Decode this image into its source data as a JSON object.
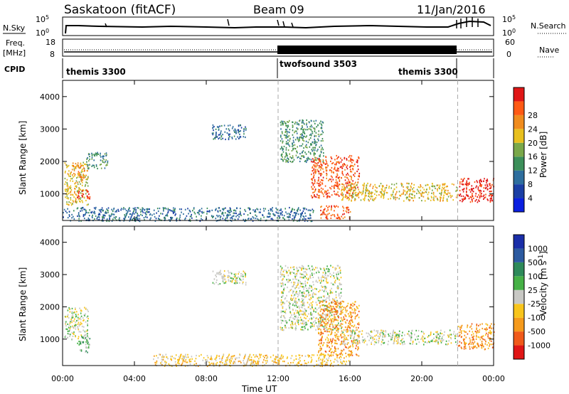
{
  "header": {
    "station": "Saskatoon (fitACF)",
    "beam": "Beam 09",
    "date": "11/Jan/2016"
  },
  "nsky_panel": {
    "label": "N.Sky",
    "right_label": "N.Search",
    "left_ticks": [
      "10^5",
      "10^0"
    ],
    "right_ticks": [
      "10^5",
      "10^0"
    ]
  },
  "freq_panel": {
    "label_line1": "Freq.",
    "label_line2": "[MHz]",
    "right_label": "Nave",
    "left_ticks": [
      "18",
      "8"
    ],
    "right_ticks": [
      "60",
      "0"
    ]
  },
  "cpid_panel": {
    "label": "CPID",
    "segments": [
      {
        "name": "themis 3300",
        "start_hour": 0,
        "end_hour": 12
      },
      {
        "name": "twofsound 3503",
        "start_hour": 12,
        "end_hour": 22
      },
      {
        "name": "themis 3300",
        "start_hour": 22,
        "end_hour": 24
      }
    ]
  },
  "colors": {
    "power": [
      "#0a1fe0",
      "#1b3fa5",
      "#2e6e9e",
      "#3c8f5a",
      "#7aa84a",
      "#e8c01e",
      "#f08c1e",
      "#ff5a14",
      "#e01616"
    ],
    "velocity": [
      "#e01616",
      "#f05a1a",
      "#f59a1c",
      "#f8c51c",
      "#c8c8c4",
      "#46b146",
      "#2e8a5a",
      "#2c5aa0",
      "#1a2ea8"
    ],
    "ground_scatter": "#c8c8c4"
  },
  "chart_data": [
    {
      "type": "heatmap",
      "name": "power",
      "ylabel": "Slant Range [km]",
      "xlabel": "",
      "xlim": [
        0,
        24
      ],
      "ylim": [
        180,
        4500
      ],
      "yticks": [
        1000,
        2000,
        3000,
        4000
      ],
      "xticks": [
        0,
        4,
        8,
        12,
        16,
        20,
        24
      ],
      "xtick_labels": [
        "00:00",
        "04:00",
        "08:00",
        "12:00",
        "16:00",
        "20:00",
        "00:00"
      ],
      "dashed_vlines": [
        12,
        22
      ],
      "colorbar": {
        "label": "Power [dB]",
        "bounds": [
          0,
          4,
          8,
          12,
          16,
          20,
          24,
          28,
          32
        ],
        "tick_labels": [
          "4",
          "8",
          "12",
          "16",
          "20",
          "24",
          "28"
        ]
      },
      "regions": [
        {
          "t": [
            0.1,
            1.4
          ],
          "r": [
            680,
            2000
          ],
          "level": 5,
          "note": "diagonal band"
        },
        {
          "t": [
            0.8,
            1.5
          ],
          "r": [
            850,
            1150
          ],
          "level": 8
        },
        {
          "t": [
            0.5,
            1.2
          ],
          "r": [
            1500,
            2000
          ],
          "level": 6
        },
        {
          "t": [
            1.3,
            2.5
          ],
          "r": [
            1800,
            2300
          ],
          "level": 3
        },
        {
          "t": [
            8.3,
            10.2
          ],
          "r": [
            2700,
            3150
          ],
          "level": 2
        },
        {
          "t": [
            12.1,
            14.5
          ],
          "r": [
            2000,
            3300
          ],
          "level": 3,
          "note": "descending arc"
        },
        {
          "t": [
            13.8,
            16.5
          ],
          "r": [
            900,
            2200
          ],
          "level": 7
        },
        {
          "t": [
            15.5,
            22.0
          ],
          "r": [
            800,
            1350
          ],
          "level": 5
        },
        {
          "t": [
            14.3,
            16.0
          ],
          "r": [
            250,
            650
          ],
          "level": 7
        },
        {
          "t": [
            22.0,
            24.0
          ],
          "r": [
            750,
            1500
          ],
          "level": 8
        },
        {
          "t": [
            0.0,
            14.0
          ],
          "r": [
            180,
            600
          ],
          "level": 2,
          "note": "near-range noise"
        }
      ]
    },
    {
      "type": "heatmap",
      "name": "velocity",
      "ylabel": "Slant Range [km]",
      "xlabel": "Time UT",
      "xlim": [
        0,
        24
      ],
      "ylim": [
        180,
        4500
      ],
      "yticks": [
        1000,
        2000,
        3000,
        4000
      ],
      "xticks": [
        0,
        4,
        8,
        12,
        16,
        20,
        24
      ],
      "xtick_labels": [
        "00:00",
        "04:00",
        "08:00",
        "12:00",
        "16:00",
        "20:00",
        "00:00"
      ],
      "dashed_vlines": [
        12,
        22
      ],
      "colorbar": {
        "label": "Velocity [m s^-1]",
        "tick_labels": [
          "-1000",
          "-500",
          "-100",
          "-25",
          "25",
          "100",
          "500",
          "1000"
        ]
      },
      "regions": [
        {
          "t": [
            0.1,
            1.4
          ],
          "r": [
            1000,
            2000
          ],
          "level": 4,
          "note": "ground scatter"
        },
        {
          "t": [
            0.8,
            1.5
          ],
          "r": [
            600,
            1100
          ],
          "level": 5
        },
        {
          "t": [
            8.3,
            10.2
          ],
          "r": [
            2700,
            3150
          ],
          "level": 4
        },
        {
          "t": [
            12.1,
            15.5
          ],
          "r": [
            1300,
            3300
          ],
          "level": 4
        },
        {
          "t": [
            14.2,
            16.5
          ],
          "r": [
            500,
            2200
          ],
          "level": 2
        },
        {
          "t": [
            15.5,
            22.0
          ],
          "r": [
            850,
            1300
          ],
          "level": 4
        },
        {
          "t": [
            5.0,
            16.0
          ],
          "r": [
            180,
            550
          ],
          "level": 3
        },
        {
          "t": [
            22.0,
            24.0
          ],
          "r": [
            700,
            1500
          ],
          "level": 2
        }
      ]
    }
  ]
}
